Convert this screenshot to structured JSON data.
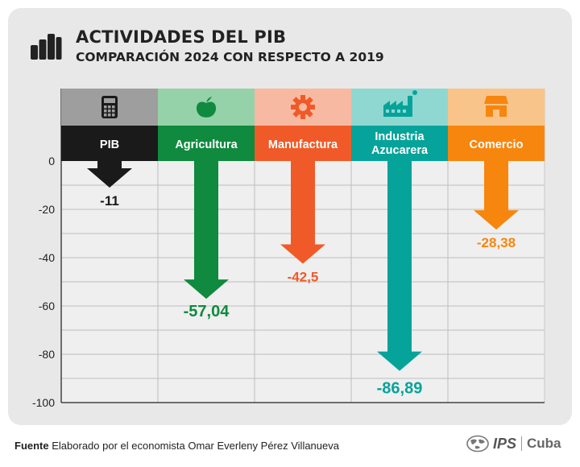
{
  "header": {
    "title": "ACTIVIDADES DEL PIB",
    "subtitle": "COMPARACIÓN 2024 CON RESPECTO A 2019"
  },
  "footer": {
    "source_label": "Fuente",
    "source_text": "Elaborado por el economista Omar Everleny Pérez Villanueva",
    "brand_ips": "IPS",
    "brand_cuba": "Cuba"
  },
  "chart_data": {
    "type": "bar",
    "title": "ACTIVIDADES DEL PIB",
    "subtitle": "COMPARACIÓN 2024 CON RESPECTO A 2019",
    "categories": [
      {
        "label": "PIB",
        "lines": [
          "PIB"
        ],
        "value": -11,
        "value_label": "-11",
        "color": "#1a1a1a",
        "icon_bg": "#9e9e9e",
        "icon": "calculator-icon"
      },
      {
        "label": "Agricultura",
        "lines": [
          "Agricultura"
        ],
        "value": -57.04,
        "value_label": "-57,04",
        "color": "#0f8a3e",
        "icon_bg": "#95d1a9",
        "icon": "apple-icon"
      },
      {
        "label": "Manufactura",
        "lines": [
          "Manufactura"
        ],
        "value": -42.5,
        "value_label": "-42,5",
        "color": "#f05a28",
        "icon_bg": "#f8b9a2",
        "icon": "gear-icon"
      },
      {
        "label": "Industria Azucarera",
        "lines": [
          "Industria",
          "Azucarera"
        ],
        "value": -86.89,
        "value_label": "-86,89",
        "color": "#06a39a",
        "icon_bg": "#8fd8d2",
        "icon": "factory-icon"
      },
      {
        "label": "Comercio",
        "lines": [
          "Comercio"
        ],
        "value": -28.38,
        "value_label": "-28,38",
        "color": "#f7860e",
        "icon_bg": "#f9c48a",
        "icon": "store-icon"
      }
    ],
    "y_ticks": [
      0,
      -20,
      -40,
      -60,
      -80,
      -100
    ],
    "ylim": [
      -100,
      0
    ],
    "grid": true
  }
}
